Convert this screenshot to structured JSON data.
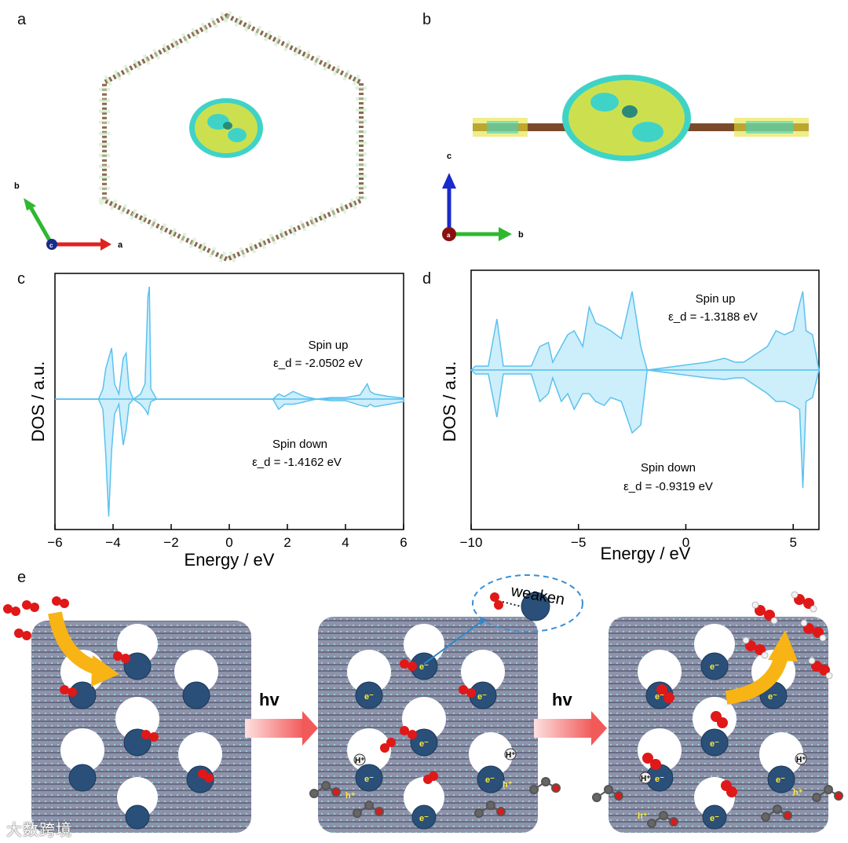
{
  "panels": {
    "a": {
      "letter": "a",
      "axes": {
        "x": "a",
        "y": "b",
        "origin": "c"
      }
    },
    "b": {
      "letter": "b",
      "axes": {
        "x": "b",
        "y": "c",
        "origin": "a"
      }
    },
    "c": {
      "letter": "c"
    },
    "d": {
      "letter": "d"
    },
    "e": {
      "letter": "e",
      "step_label": "hv",
      "bubble_label": "weaken",
      "electron": "e⁻",
      "proton": "H⁺",
      "hole": "h⁺"
    }
  },
  "colors": {
    "dos_line": "#5bc2ee",
    "dos_fill": "#cdeefb",
    "density_yellow": "#e5e23a",
    "density_cyan": "#3fd3c8",
    "framework": "#8a8fa8",
    "cluster": "#2a4f78",
    "oxygen": "#e01818",
    "arrow_orange": "#f8b414",
    "arrow_red": "#f25a5a",
    "bubble": "#3a8fd6"
  },
  "chart_data": [
    {
      "type": "line",
      "panel": "c",
      "xlabel": "Energy / eV",
      "ylabel": "DOS / a.u.",
      "xlim": [
        -6,
        6
      ],
      "xticks": [
        -6,
        -4,
        -2,
        0,
        2,
        4,
        6
      ],
      "annotations": [
        {
          "label": "Spin up",
          "value": "ε_d = -2.0502 eV",
          "epsilon_d": -2.0502
        },
        {
          "label": "Spin down",
          "value": "ε_d = -1.4162 eV",
          "epsilon_d": -1.4162
        }
      ],
      "series": [
        {
          "name": "Spin up",
          "x": [
            -6,
            -4.5,
            -4.35,
            -4.25,
            -4.15,
            -4.05,
            -3.95,
            -3.8,
            -3.65,
            -3.55,
            -3.45,
            -3.3,
            -3.05,
            -2.9,
            -2.8,
            -2.75,
            -2.7,
            -2.5,
            1.5,
            1.7,
            1.9,
            2.2,
            2.4,
            2.6,
            3.0,
            3.5,
            4.0,
            4.5,
            4.75,
            4.85,
            5.0,
            5.5,
            6
          ],
          "y": [
            0,
            0,
            0.2,
            0.6,
            0.8,
            1.0,
            0.3,
            0.1,
            0.8,
            0.9,
            0.2,
            0,
            0.1,
            0.3,
            2.0,
            2.2,
            0.2,
            0,
            0,
            0.1,
            0.05,
            0.15,
            0.1,
            0.05,
            0,
            0.03,
            0.03,
            0.08,
            0.3,
            0.15,
            0.1,
            0.05,
            0.02
          ]
        },
        {
          "name": "Spin down",
          "x": [
            -6,
            -4.5,
            -4.35,
            -4.25,
            -4.15,
            -4.05,
            -3.95,
            -3.8,
            -3.65,
            -3.55,
            -3.45,
            -3.3,
            -3.05,
            -2.9,
            -2.8,
            -2.75,
            -2.7,
            -2.5,
            1.5,
            1.7,
            1.9,
            2.2,
            2.4,
            2.6,
            3.0,
            3.5,
            4.0,
            4.5,
            4.75,
            4.85,
            5.0,
            5.5,
            6
          ],
          "y": [
            0,
            0,
            -0.2,
            -1.1,
            -2.3,
            -1.0,
            -0.3,
            -0.1,
            -0.9,
            -0.6,
            -0.1,
            0,
            -0.1,
            -0.2,
            -0.3,
            -0.15,
            -0.05,
            0,
            0,
            -0.2,
            -0.1,
            -0.1,
            -0.08,
            -0.05,
            0,
            -0.03,
            -0.03,
            -0.12,
            -0.15,
            -0.1,
            -0.15,
            -0.1,
            -0.05
          ]
        }
      ]
    },
    {
      "type": "line",
      "panel": "d",
      "xlabel": "Energy / eV",
      "ylabel": "DOS / a.u.",
      "xlim": [
        -10,
        6.2
      ],
      "xticks": [
        -10,
        -5,
        0,
        5
      ],
      "annotations": [
        {
          "label": "Spin up",
          "value": "ε_d = -1.3188 eV",
          "epsilon_d": -1.3188
        },
        {
          "label": "Spin down",
          "value": "ε_d = -0.9319 eV",
          "epsilon_d": -0.9319
        }
      ],
      "series": [
        {
          "name": "Spin up",
          "x": [
            -10,
            -9.8,
            -9.2,
            -8.8,
            -8.5,
            -7.8,
            -7.2,
            -6.8,
            -6.4,
            -6.2,
            -5.8,
            -5.5,
            -5.2,
            -4.8,
            -4.5,
            -4.2,
            -3.8,
            -3.5,
            -3.0,
            -2.5,
            -2.1,
            -1.8,
            1.0,
            1.8,
            2.3,
            2.7,
            3.8,
            4.2,
            4.6,
            5.0,
            5.3,
            5.45,
            5.6,
            5.9,
            6.2
          ],
          "y": [
            0,
            0.05,
            0.05,
            0.65,
            0.05,
            0.05,
            0.05,
            0.3,
            0.35,
            0.1,
            0.3,
            0.45,
            0.5,
            0.3,
            0.8,
            0.6,
            0.55,
            0.5,
            0.4,
            1.0,
            0.3,
            0,
            0.1,
            0.15,
            0.1,
            0.1,
            0.3,
            0.5,
            0.45,
            0.5,
            0.85,
            1.0,
            0.5,
            0.45,
            0
          ]
        },
        {
          "name": "Spin down",
          "x": [
            -10,
            -9.8,
            -9.2,
            -8.8,
            -8.5,
            -7.8,
            -7.2,
            -6.8,
            -6.4,
            -6.2,
            -5.8,
            -5.5,
            -5.2,
            -4.8,
            -4.5,
            -4.2,
            -3.8,
            -3.5,
            -3.0,
            -2.5,
            -2.1,
            -1.8,
            1.0,
            1.8,
            2.3,
            2.7,
            3.8,
            4.2,
            4.6,
            5.0,
            5.3,
            5.45,
            5.6,
            5.9,
            6.2
          ],
          "y": [
            0,
            -0.05,
            -0.05,
            -0.6,
            -0.05,
            -0.05,
            -0.05,
            -0.4,
            -0.3,
            -0.1,
            -0.4,
            -0.3,
            -0.5,
            -0.3,
            -0.3,
            -0.4,
            -0.45,
            -0.35,
            -0.4,
            -0.8,
            -0.7,
            0,
            -0.1,
            -0.12,
            -0.1,
            -0.1,
            -0.3,
            -0.4,
            -0.4,
            -0.45,
            -0.5,
            -1.5,
            -0.4,
            -0.35,
            0
          ]
        }
      ]
    }
  ],
  "watermark": "大数跨境"
}
